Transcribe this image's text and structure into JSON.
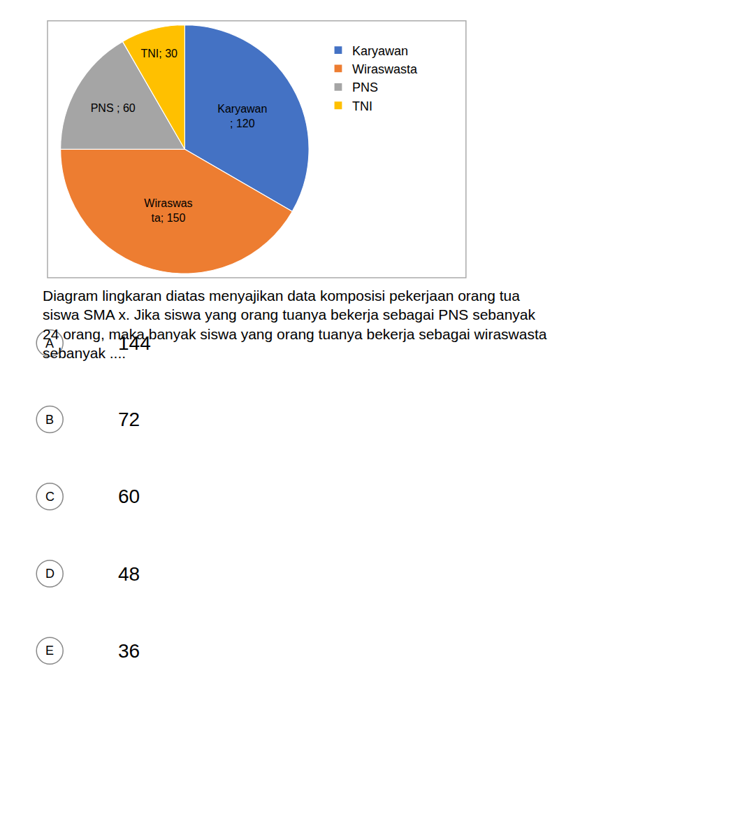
{
  "chart_data": {
    "type": "pie",
    "categories": [
      "Karyawan",
      "Wiraswasta",
      "PNS",
      "TNI"
    ],
    "values": [
      120,
      150,
      60,
      30
    ],
    "colors": [
      "#4472C4",
      "#ED7D31",
      "#A5A5A5",
      "#FFC000"
    ],
    "data_labels": true,
    "value_labels": [
      "Karyawan\n; 120",
      "Wiraswas\nta; 150",
      "PNS ; 60",
      "TNI; 30"
    ],
    "legend": "right",
    "annotations": [
      "Diagram lingkaran diatas menyajikan data komposisi pekerjaan orang tua\nsiswa SMA x. Jika siswa yang orang tuanya bekerja sebagai PNS sebanyak\n24 orang, maka banyak siswa yang orang tuanya bekerja sebagai wiraswasta\nsebanyak ....",
      "A",
      "144",
      "B",
      "72",
      "C",
      "60",
      "D",
      "48",
      "E",
      "36"
    ]
  }
}
